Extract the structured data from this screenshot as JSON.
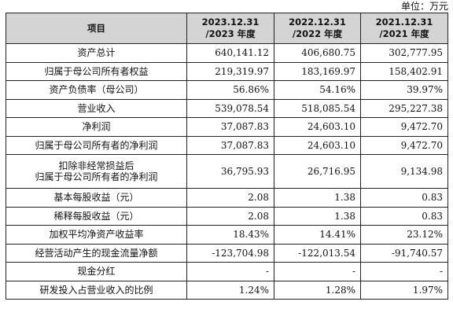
{
  "unit_label": "单位：万元",
  "header": {
    "item": "项目",
    "col1_line1": "2023.12.31",
    "col1_line2": "/2023 年度",
    "col2_line1": "2022.12.31",
    "col2_line2": "/2022 年度",
    "col3_line1": "2021.12.31",
    "col3_line2": "/2021 年度"
  },
  "rows": [
    {
      "label": "资产总计",
      "v2023": "640,141.12",
      "v2022": "406,680.75",
      "v2021": "302,777.95"
    },
    {
      "label": "归属于母公司所有者权益",
      "v2023": "219,319.97",
      "v2022": "183,169.97",
      "v2021": "158,402.91"
    },
    {
      "label": "资产负债率（母公司）",
      "v2023": "56.86%",
      "v2022": "54.16%",
      "v2021": "39.97%"
    },
    {
      "label": "营业收入",
      "v2023": "539,078.54",
      "v2022": "518,085.54",
      "v2021": "295,227.38"
    },
    {
      "label": "净利润",
      "v2023": "37,087.83",
      "v2022": "24,603.10",
      "v2021": "9,472.70"
    },
    {
      "label": "归属于母公司所有者的净利润",
      "v2023": "37,087.83",
      "v2022": "24,603.10",
      "v2021": "9,472.70"
    },
    {
      "label_line1": "扣除非经常损益后",
      "label_line2": "归属于母公司所有者的净利润",
      "v2023": "36,795.93",
      "v2022": "26,716.95",
      "v2021": "9,134.98"
    },
    {
      "label": "基本每股收益（元）",
      "v2023": "2.08",
      "v2022": "1.38",
      "v2021": "0.83"
    },
    {
      "label": "稀释每股收益（元）",
      "v2023": "2.08",
      "v2022": "1.38",
      "v2021": "0.83"
    },
    {
      "label": "加权平均净资产收益率",
      "v2023": "18.43%",
      "v2022": "14.41%",
      "v2021": "23.12%"
    },
    {
      "label": "经营活动产生的现金流量净额",
      "v2023": "-123,704.98",
      "v2022": "-122,013.54",
      "v2021": "-91,740.57"
    },
    {
      "label": "现金分红",
      "v2023": "-",
      "v2022": "-",
      "v2021": "-"
    },
    {
      "label": "研发投入占营业收入的比例",
      "v2023": "1.24%",
      "v2022": "1.28%",
      "v2021": "1.97%"
    }
  ]
}
